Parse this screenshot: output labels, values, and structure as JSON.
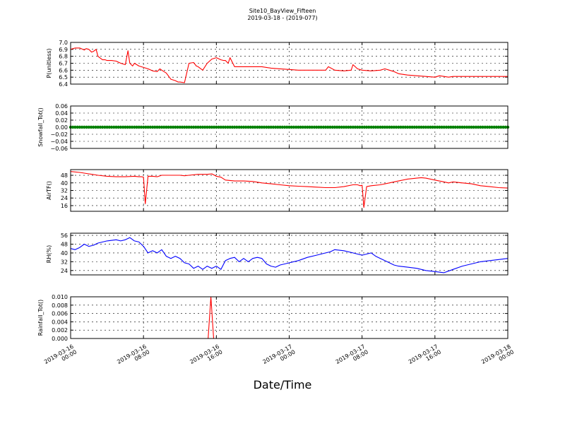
{
  "header": {
    "title": "Site10_BayView_Fifteen",
    "subtitle": "2019-03-18 - (2019-077)"
  },
  "xaxis": {
    "label": "Date/Time",
    "range": [
      "2019-03-16 00:00",
      "2019-03-18 00:00"
    ],
    "ticks": [
      {
        "line1": "2019-03-16",
        "line2": "00:00",
        "hour": 0
      },
      {
        "line1": "2019-03-16",
        "line2": "08:00",
        "hour": 8
      },
      {
        "line1": "2019-03-16",
        "line2": "16:00",
        "hour": 16
      },
      {
        "line1": "2019-03-17",
        "line2": "00:00",
        "hour": 24
      },
      {
        "line1": "2019-03-17",
        "line2": "08:00",
        "hour": 32
      },
      {
        "line1": "2019-03-17",
        "line2": "16:00",
        "hour": 40
      },
      {
        "line1": "2019-03-18",
        "line2": "00:00",
        "hour": 48
      }
    ]
  },
  "chart_data": [
    {
      "type": "line",
      "ylabel": "P(unitless)",
      "ylim": [
        6.4,
        7.0
      ],
      "yticks": [
        "6.4",
        "6.5",
        "6.6",
        "6.7",
        "6.8",
        "6.9",
        "7.0"
      ],
      "color": "#ff0000",
      "grid": true,
      "x_hours": [
        0,
        0.5,
        1,
        1.5,
        1.7,
        2,
        2.3,
        2.5,
        2.8,
        3,
        3.5,
        3.8,
        4,
        4.5,
        5,
        5.5,
        6,
        6.3,
        6.5,
        6.8,
        7,
        7.5,
        8,
        8.5,
        9,
        9.5,
        9.8,
        10,
        10.5,
        11,
        11.5,
        11.8,
        12,
        12.5,
        13,
        13.5,
        13.8,
        14,
        14.5,
        15,
        15.5,
        16,
        16.5,
        16.8,
        17,
        17.3,
        17.5,
        18,
        19,
        20,
        21,
        22,
        23,
        24,
        25,
        26,
        27,
        28,
        28.3,
        29,
        30,
        30.8,
        31,
        31.5,
        32,
        33,
        34,
        34.5,
        35,
        35.5,
        36,
        37,
        38,
        39,
        40,
        40.5,
        41,
        41.5,
        42,
        43,
        44,
        45,
        46,
        47,
        48
      ],
      "values": [
        6.9,
        6.92,
        6.92,
        6.89,
        6.91,
        6.9,
        6.86,
        6.87,
        6.9,
        6.8,
        6.75,
        6.75,
        6.74,
        6.74,
        6.73,
        6.7,
        6.68,
        6.88,
        6.7,
        6.66,
        6.7,
        6.66,
        6.64,
        6.62,
        6.59,
        6.58,
        6.62,
        6.6,
        6.56,
        6.47,
        6.45,
        6.43,
        6.43,
        6.42,
        6.7,
        6.71,
        6.66,
        6.65,
        6.6,
        6.7,
        6.76,
        6.78,
        6.75,
        6.74,
        6.74,
        6.7,
        6.78,
        6.65,
        6.65,
        6.65,
        6.65,
        6.63,
        6.62,
        6.61,
        6.6,
        6.6,
        6.6,
        6.6,
        6.65,
        6.6,
        6.59,
        6.6,
        6.68,
        6.62,
        6.6,
        6.59,
        6.6,
        6.62,
        6.6,
        6.58,
        6.55,
        6.53,
        6.52,
        6.51,
        6.5,
        6.52,
        6.51,
        6.5,
        6.51,
        6.51,
        6.51,
        6.51,
        6.51,
        6.51,
        6.51
      ]
    },
    {
      "type": "scatter",
      "ylabel": "Snowfall_Tot()",
      "ylim": [
        -0.06,
        0.06
      ],
      "yticks": [
        "−0.06",
        "−0.04",
        "−0.02",
        "0.00",
        "0.02",
        "0.04",
        "0.06"
      ],
      "color": "#008000",
      "grid": true,
      "x_hours_range": [
        0,
        48
      ],
      "constant_value": 0.0
    },
    {
      "type": "line",
      "ylabel": "AirTF()",
      "ylim": [
        10,
        54
      ],
      "yticks": [
        "16",
        "24",
        "32",
        "40",
        "48"
      ],
      "color": "#ff0000",
      "grid": true,
      "x_hours": [
        0,
        1,
        2,
        3,
        4,
        5,
        6,
        7,
        7.5,
        7.8,
        8,
        8.2,
        8.5,
        9,
        9.5,
        10,
        11,
        12,
        12.5,
        13,
        14,
        14.5,
        15,
        15.5,
        16,
        16.5,
        17,
        18,
        19,
        20,
        21,
        22,
        23,
        24,
        25,
        26,
        27,
        28,
        29,
        30,
        31,
        31.5,
        31.8,
        32,
        32.2,
        32.5,
        33,
        34,
        35,
        36,
        37,
        38,
        38.5,
        39,
        40,
        41,
        41.5,
        42,
        43,
        44,
        45,
        46,
        47,
        48
      ],
      "values": [
        52,
        51,
        49.5,
        48,
        47,
        46.5,
        46.5,
        47,
        46.5,
        46.5,
        46,
        18,
        47,
        47,
        46.5,
        48,
        48,
        48,
        47.5,
        48,
        49,
        49,
        49,
        49.5,
        47,
        46,
        43,
        42,
        42,
        41.5,
        40,
        39,
        38,
        37,
        36.5,
        36,
        35.5,
        35,
        35,
        36,
        38,
        38,
        37,
        37.5,
        14,
        36,
        37,
        38,
        40,
        42,
        44,
        45,
        45.5,
        45,
        43,
        41,
        40,
        41,
        40,
        39,
        37,
        36,
        35,
        34.5
      ]
    },
    {
      "type": "line",
      "ylabel": "RH(%)",
      "ylim": [
        20,
        58
      ],
      "yticks": [
        "24",
        "32",
        "40",
        "48",
        "56"
      ],
      "color": "#0000ff",
      "grid": true,
      "x_hours": [
        0,
        0.5,
        1,
        1.5,
        2,
        2.5,
        3,
        4,
        5,
        5.5,
        6,
        6.5,
        7,
        7.5,
        8,
        8.5,
        9,
        9.5,
        10,
        10.5,
        11,
        11.5,
        12,
        12.5,
        13,
        13.5,
        14,
        14.5,
        15,
        15.5,
        16,
        16.5,
        17,
        17.5,
        18,
        18.5,
        19,
        19.5,
        20,
        20.5,
        21,
        21.5,
        22,
        22.5,
        23,
        23.5,
        24,
        25,
        26,
        27,
        28,
        28.5,
        29,
        30,
        31,
        31.5,
        32,
        32.5,
        33,
        33.5,
        34,
        35,
        35.5,
        36,
        37,
        38,
        39,
        40,
        41,
        42,
        43,
        44,
        45,
        46,
        47,
        48
      ],
      "values": [
        44,
        43,
        45,
        48,
        46,
        47,
        49,
        51,
        52,
        51,
        52,
        54,
        51,
        50,
        46,
        40,
        42,
        40,
        43,
        37,
        35,
        37,
        35,
        31,
        30,
        26,
        28,
        25,
        28,
        26,
        28,
        25,
        33,
        35,
        36,
        32,
        35,
        32,
        35,
        36,
        35,
        30,
        28,
        27,
        29,
        30,
        31,
        33,
        36,
        38,
        40,
        41,
        43,
        42,
        40,
        39,
        38,
        39,
        40,
        37,
        35,
        31,
        29,
        28,
        27,
        26,
        24,
        23,
        22,
        25,
        28,
        30,
        32,
        33,
        34,
        35
      ]
    },
    {
      "type": "line",
      "ylabel": "Rainfall_Tot()",
      "ylim": [
        0.0,
        0.01
      ],
      "yticks": [
        "0.000",
        "0.002",
        "0.004",
        "0.006",
        "0.008",
        "0.010"
      ],
      "color": "#ff0000",
      "grid": true,
      "x_hours": [
        0,
        15.1,
        15.4,
        15.7,
        48
      ],
      "values": [
        0.0,
        0.0,
        0.01,
        0.0,
        0.0
      ]
    }
  ]
}
